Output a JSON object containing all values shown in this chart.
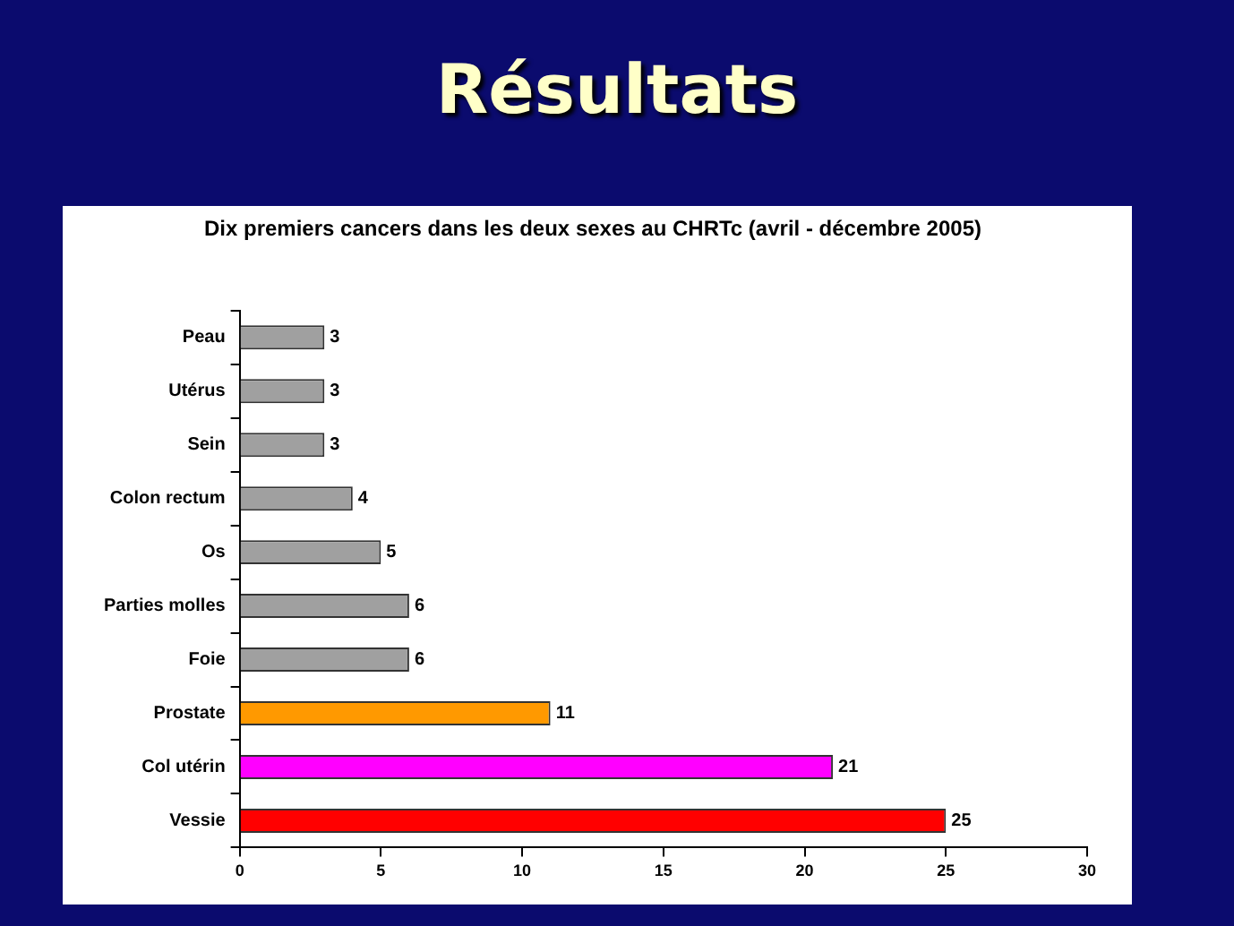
{
  "chart_data": {
    "type": "bar",
    "orientation": "horizontal",
    "title": "Résultats",
    "subtitle": "Dix premiers cancers dans les deux sexes au CHRTc (avril - décembre 2005)",
    "categories": [
      "Peau",
      "Utérus",
      "Sein",
      "Colon rectum",
      "Os",
      "Parties molles",
      "Foie",
      "Prostate",
      "Col utérin",
      "Vessie"
    ],
    "values": [
      3,
      3,
      3,
      4,
      5,
      6,
      6,
      11,
      21,
      25
    ],
    "colors": [
      "#a0a0a0",
      "#a0a0a0",
      "#a0a0a0",
      "#a0a0a0",
      "#a0a0a0",
      "#a0a0a0",
      "#a0a0a0",
      "#ff9900",
      "#ff00ff",
      "#ff0000"
    ],
    "xlim": [
      0,
      30
    ],
    "xticks": [
      0,
      5,
      10,
      15,
      20,
      25,
      30
    ],
    "data_labels": true
  }
}
